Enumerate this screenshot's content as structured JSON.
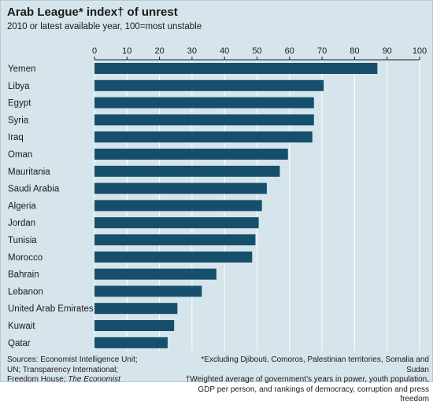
{
  "chart_data": {
    "type": "bar",
    "orientation": "horizontal",
    "title": "Arab League* index† of unrest",
    "subtitle": "2010 or latest available year, 100=most unstable",
    "categories": [
      "Yemen",
      "Libya",
      "Egypt",
      "Syria",
      "Iraq",
      "Oman",
      "Mauritania",
      "Saudi Arabia",
      "Algeria",
      "Jordan",
      "Tunisia",
      "Morocco",
      "Bahrain",
      "Lebanon",
      "United Arab Emirates",
      "Kuwait",
      "Qatar"
    ],
    "values": [
      87,
      70.5,
      67.5,
      67.5,
      67,
      59.5,
      57,
      53,
      51.5,
      50.5,
      49.5,
      48.5,
      37.5,
      33,
      25.5,
      24.5,
      22.5
    ],
    "xlim": [
      0,
      100
    ],
    "xticks": [
      "0",
      "10",
      "20",
      "30",
      "40",
      "50",
      "60",
      "70",
      "80",
      "90",
      "100"
    ],
    "xtick_values": [
      0,
      10,
      20,
      30,
      40,
      50,
      60,
      70,
      80,
      90,
      100
    ],
    "bar_color": "#154f6b",
    "background_color": "#d6e4ec",
    "grid": true,
    "axis_position": "top"
  },
  "footnotes": {
    "sources_label": "Sources: Economist Intelligence Unit;",
    "sources_line2": "UN; Transparency International;",
    "sources_line3": "Freedom House; ",
    "sources_italic": "The Economist",
    "note_line1": "*Excluding Djibouti, Comoros, Palestinian territories, Somalia and Sudan",
    "note_line2": "†Weighted average of government’s years in power, youth population,",
    "note_line3": "GDP per person, and rankings of democracy, corruption and press freedom"
  }
}
